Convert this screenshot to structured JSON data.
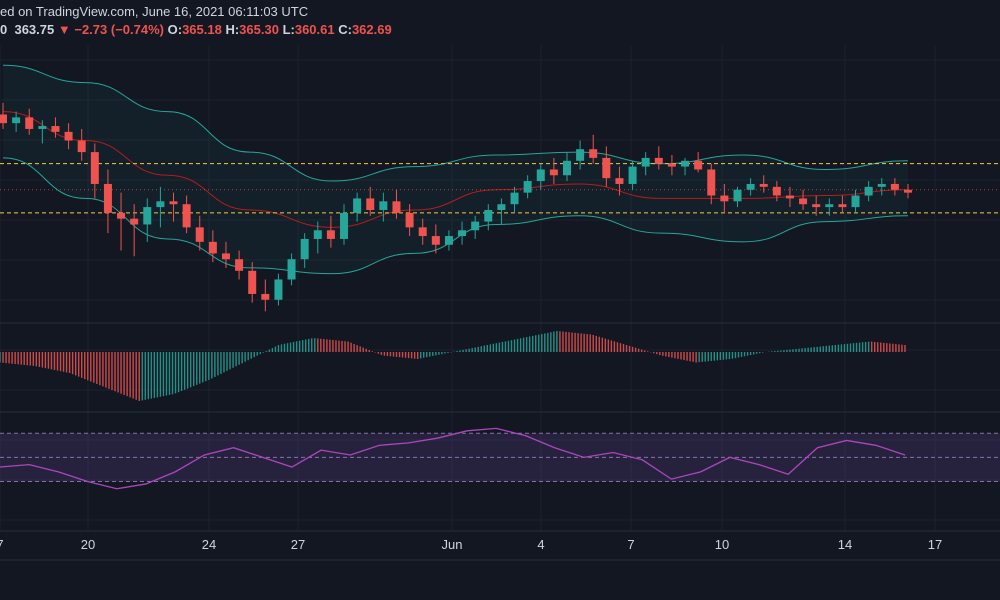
{
  "header": {
    "published": "ed on TradingView.com, June 16, 2021 06:11:03 UTC",
    "symbol_tail": "0",
    "price": "363.75",
    "change": "−2.73 (−0.74%)",
    "open_label": "O:",
    "open": "365.18",
    "high_label": "H:",
    "high": "365.30",
    "low_label": "L:",
    "low": "360.61",
    "close_label": "C:",
    "close": "362.69"
  },
  "colors": {
    "background": "#131722",
    "grid": "#1e222d",
    "up": "#26a69a",
    "down": "#ef5350",
    "bands": "#26a69a",
    "basis": "#b71c1c",
    "level": "#f7c948",
    "rsi_line": "#ab47bc",
    "rsi_band": "#7e57c2"
  },
  "chart_data": {
    "type": "candlestick",
    "x_ticks": [
      "7",
      "20",
      "24",
      "27",
      "Jun",
      "4",
      "7",
      "10",
      "14",
      "17"
    ],
    "candles": [
      {
        "o": 371,
        "h": 375,
        "l": 366,
        "c": 368
      },
      {
        "o": 368,
        "h": 372,
        "l": 365,
        "c": 370
      },
      {
        "o": 370,
        "h": 373,
        "l": 364,
        "c": 366
      },
      {
        "o": 366,
        "h": 369,
        "l": 361,
        "c": 367
      },
      {
        "o": 367,
        "h": 370,
        "l": 363,
        "c": 365
      },
      {
        "o": 365,
        "h": 368,
        "l": 359,
        "c": 362
      },
      {
        "o": 362,
        "h": 366,
        "l": 355,
        "c": 358
      },
      {
        "o": 358,
        "h": 361,
        "l": 342,
        "c": 347
      },
      {
        "o": 347,
        "h": 352,
        "l": 330,
        "c": 337
      },
      {
        "o": 337,
        "h": 344,
        "l": 324,
        "c": 335
      },
      {
        "o": 335,
        "h": 340,
        "l": 322,
        "c": 333
      },
      {
        "o": 333,
        "h": 342,
        "l": 327,
        "c": 339
      },
      {
        "o": 339,
        "h": 346,
        "l": 332,
        "c": 341
      },
      {
        "o": 341,
        "h": 344,
        "l": 334,
        "c": 340
      },
      {
        "o": 340,
        "h": 343,
        "l": 330,
        "c": 332
      },
      {
        "o": 332,
        "h": 336,
        "l": 324,
        "c": 327
      },
      {
        "o": 327,
        "h": 331,
        "l": 320,
        "c": 323
      },
      {
        "o": 323,
        "h": 327,
        "l": 318,
        "c": 321
      },
      {
        "o": 321,
        "h": 324,
        "l": 314,
        "c": 317
      },
      {
        "o": 317,
        "h": 320,
        "l": 306,
        "c": 309
      },
      {
        "o": 309,
        "h": 314,
        "l": 303,
        "c": 307
      },
      {
        "o": 307,
        "h": 316,
        "l": 305,
        "c": 314
      },
      {
        "o": 314,
        "h": 323,
        "l": 312,
        "c": 321
      },
      {
        "o": 321,
        "h": 330,
        "l": 318,
        "c": 328
      },
      {
        "o": 328,
        "h": 334,
        "l": 323,
        "c": 331
      },
      {
        "o": 331,
        "h": 336,
        "l": 325,
        "c": 328
      },
      {
        "o": 328,
        "h": 340,
        "l": 326,
        "c": 337
      },
      {
        "o": 337,
        "h": 344,
        "l": 334,
        "c": 342
      },
      {
        "o": 342,
        "h": 346,
        "l": 336,
        "c": 338
      },
      {
        "o": 338,
        "h": 344,
        "l": 334,
        "c": 341
      },
      {
        "o": 341,
        "h": 345,
        "l": 335,
        "c": 337
      },
      {
        "o": 337,
        "h": 340,
        "l": 329,
        "c": 332
      },
      {
        "o": 332,
        "h": 335,
        "l": 326,
        "c": 329
      },
      {
        "o": 329,
        "h": 333,
        "l": 323,
        "c": 326
      },
      {
        "o": 326,
        "h": 331,
        "l": 324,
        "c": 329
      },
      {
        "o": 329,
        "h": 334,
        "l": 326,
        "c": 331
      },
      {
        "o": 331,
        "h": 336,
        "l": 328,
        "c": 334
      },
      {
        "o": 334,
        "h": 340,
        "l": 331,
        "c": 338
      },
      {
        "o": 338,
        "h": 342,
        "l": 333,
        "c": 340
      },
      {
        "o": 340,
        "h": 346,
        "l": 337,
        "c": 344
      },
      {
        "o": 344,
        "h": 350,
        "l": 342,
        "c": 348
      },
      {
        "o": 348,
        "h": 354,
        "l": 345,
        "c": 352
      },
      {
        "o": 352,
        "h": 356,
        "l": 347,
        "c": 350
      },
      {
        "o": 350,
        "h": 358,
        "l": 348,
        "c": 355
      },
      {
        "o": 355,
        "h": 362,
        "l": 352,
        "c": 359
      },
      {
        "o": 359,
        "h": 364,
        "l": 354,
        "c": 356
      },
      {
        "o": 356,
        "h": 360,
        "l": 346,
        "c": 349
      },
      {
        "o": 349,
        "h": 353,
        "l": 343,
        "c": 347
      },
      {
        "o": 347,
        "h": 355,
        "l": 345,
        "c": 353
      },
      {
        "o": 353,
        "h": 358,
        "l": 350,
        "c": 356
      },
      {
        "o": 356,
        "h": 360,
        "l": 352,
        "c": 354
      },
      {
        "o": 354,
        "h": 357,
        "l": 350,
        "c": 353
      },
      {
        "o": 353,
        "h": 356,
        "l": 350,
        "c": 355
      },
      {
        "o": 355,
        "h": 358,
        "l": 351,
        "c": 352
      },
      {
        "o": 352,
        "h": 354,
        "l": 340,
        "c": 343
      },
      {
        "o": 343,
        "h": 347,
        "l": 337,
        "c": 341
      },
      {
        "o": 341,
        "h": 346,
        "l": 339,
        "c": 345
      },
      {
        "o": 345,
        "h": 349,
        "l": 343,
        "c": 347
      },
      {
        "o": 347,
        "h": 350,
        "l": 344,
        "c": 346
      },
      {
        "o": 346,
        "h": 348,
        "l": 341,
        "c": 343
      },
      {
        "o": 343,
        "h": 346,
        "l": 339,
        "c": 342
      },
      {
        "o": 342,
        "h": 345,
        "l": 338,
        "c": 340
      },
      {
        "o": 340,
        "h": 343,
        "l": 336,
        "c": 339
      },
      {
        "o": 339,
        "h": 342,
        "l": 336,
        "c": 340
      },
      {
        "o": 340,
        "h": 343,
        "l": 337,
        "c": 339
      },
      {
        "o": 339,
        "h": 345,
        "l": 337,
        "c": 343
      },
      {
        "o": 343,
        "h": 348,
        "l": 341,
        "c": 346
      },
      {
        "o": 346,
        "h": 349,
        "l": 343,
        "c": 347
      },
      {
        "o": 347,
        "h": 349,
        "l": 343,
        "c": 345
      },
      {
        "o": 345,
        "h": 347,
        "l": 342,
        "c": 344
      }
    ],
    "levels": [
      354,
      337
    ],
    "bb_upper": [
      388,
      382,
      372,
      358,
      348,
      353,
      357,
      358,
      354,
      357,
      352,
      355
    ],
    "bb_basis": [
      372,
      362,
      350,
      338,
      332,
      338,
      345,
      347,
      342,
      342,
      343,
      345
    ],
    "bb_lower": [
      356,
      342,
      328,
      318,
      316,
      323,
      333,
      336,
      330,
      327,
      334,
      336
    ],
    "hist_values": [
      -3,
      -4,
      -6,
      -10,
      -14,
      -12,
      -8,
      -3,
      2,
      4,
      3,
      -1,
      -2,
      0,
      2,
      4,
      6,
      5,
      2,
      -1,
      -3,
      -2,
      0,
      1,
      2,
      3,
      2
    ],
    "rsi_values": [
      42,
      44,
      38,
      30,
      24,
      28,
      38,
      52,
      58,
      50,
      42,
      56,
      52,
      60,
      62,
      66,
      72,
      74,
      68,
      58,
      50,
      54,
      48,
      32,
      38,
      50,
      44,
      36,
      58,
      64,
      60,
      52
    ],
    "rsi_levels": [
      70,
      50,
      30
    ]
  }
}
